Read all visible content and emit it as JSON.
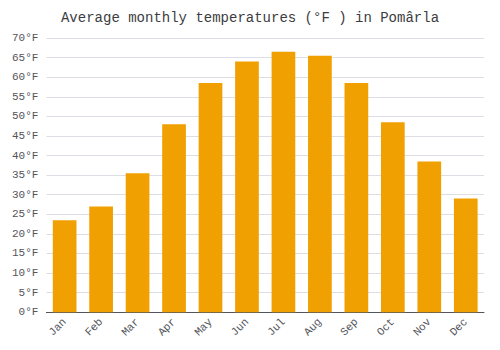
{
  "chart_data": {
    "type": "bar",
    "title": "Average monthly temperatures (°F ) in Pomârla",
    "categories": [
      "Jan",
      "Feb",
      "Mar",
      "Apr",
      "May",
      "Jun",
      "Jul",
      "Aug",
      "Sep",
      "Oct",
      "Nov",
      "Dec"
    ],
    "values": [
      23.5,
      27.0,
      35.5,
      48.0,
      58.5,
      64.0,
      66.5,
      65.5,
      58.5,
      48.5,
      38.5,
      29.0
    ],
    "color": "#F0A000",
    "ylim": [
      0,
      70
    ],
    "yticks": [
      {
        "value": 0,
        "label": "0°F"
      },
      {
        "value": 5,
        "label": "5°F"
      },
      {
        "value": 10,
        "label": "10°F"
      },
      {
        "value": 15,
        "label": "15°F"
      },
      {
        "value": 20,
        "label": "20°F"
      },
      {
        "value": 25,
        "label": "25°F"
      },
      {
        "value": 30,
        "label": "30°F"
      },
      {
        "value": 35,
        "label": "35°F"
      },
      {
        "value": 40,
        "label": "40°F"
      },
      {
        "value": 45,
        "label": "45°F"
      },
      {
        "value": 50,
        "label": "50°F"
      },
      {
        "value": 55,
        "label": "55°F"
      },
      {
        "value": 60,
        "label": "60°F"
      },
      {
        "value": 65,
        "label": "65°F"
      },
      {
        "value": 70,
        "label": "70°F"
      }
    ],
    "grid": true
  }
}
